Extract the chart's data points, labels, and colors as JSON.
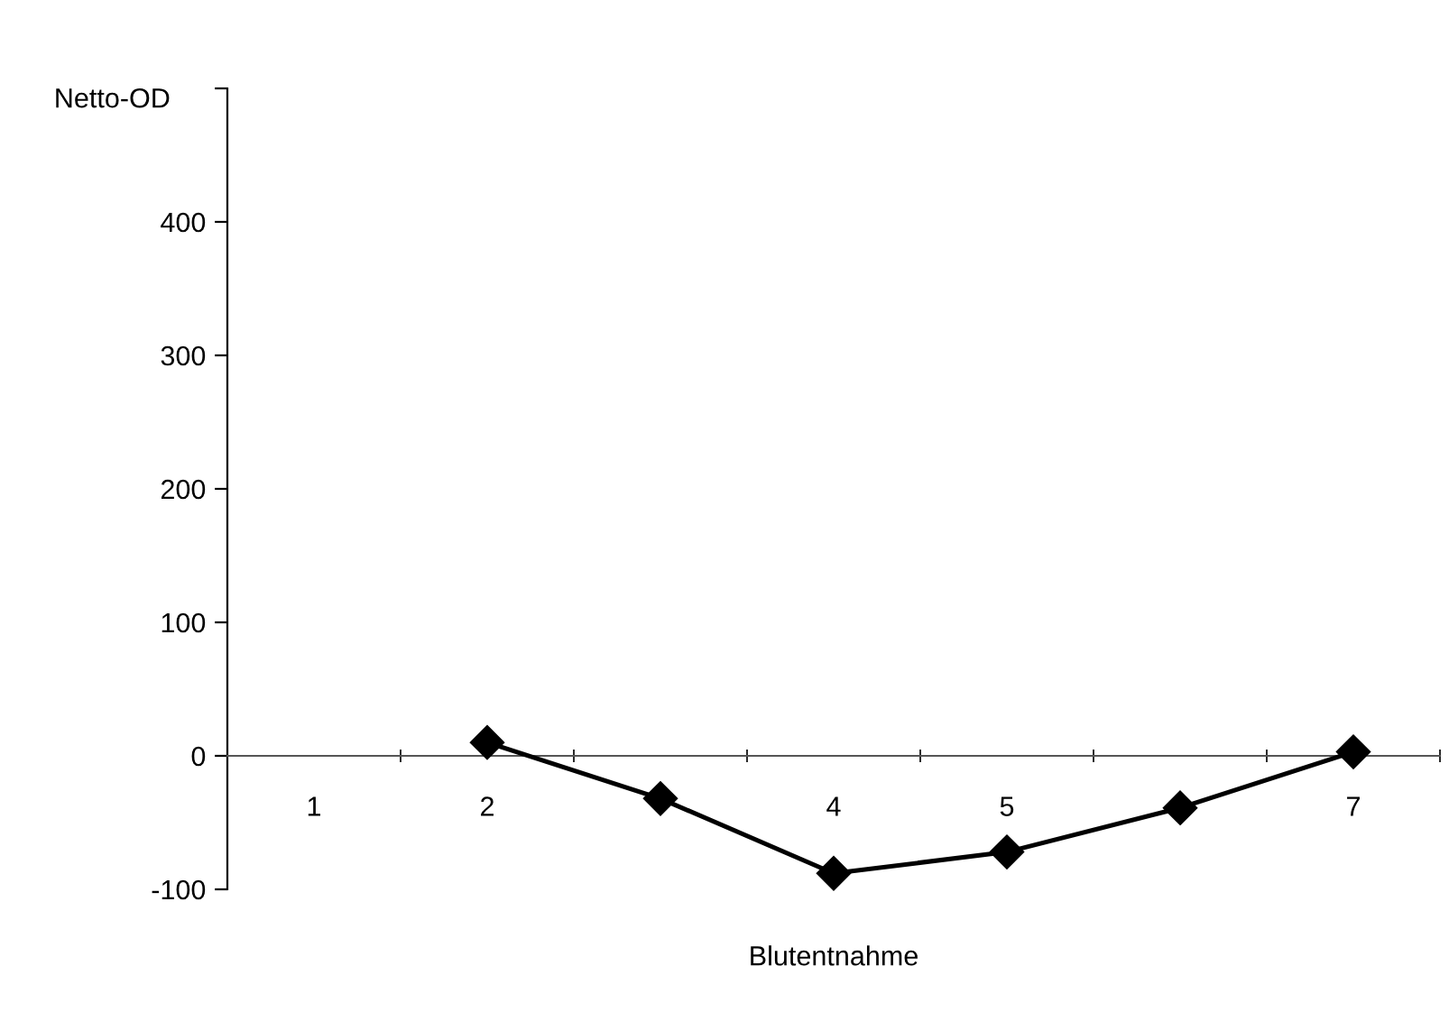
{
  "chart_data": {
    "type": "line",
    "xlabel": "Blutentnahme",
    "ylabel": "Netto-OD",
    "categories": [
      "1",
      "2",
      null,
      "4",
      "5",
      null,
      "7"
    ],
    "series": [
      {
        "color": "#000000",
        "values": [
          null,
          10,
          -32,
          -88,
          -72,
          -39,
          3
        ]
      }
    ],
    "ylim": [
      -100,
      500
    ],
    "yticks": [
      -100,
      0,
      100,
      200,
      300,
      400,
      {
        "value": 500,
        "label": null
      }
    ],
    "marker": "diamond",
    "line_style": "solid",
    "grid": false,
    "legend": false
  }
}
